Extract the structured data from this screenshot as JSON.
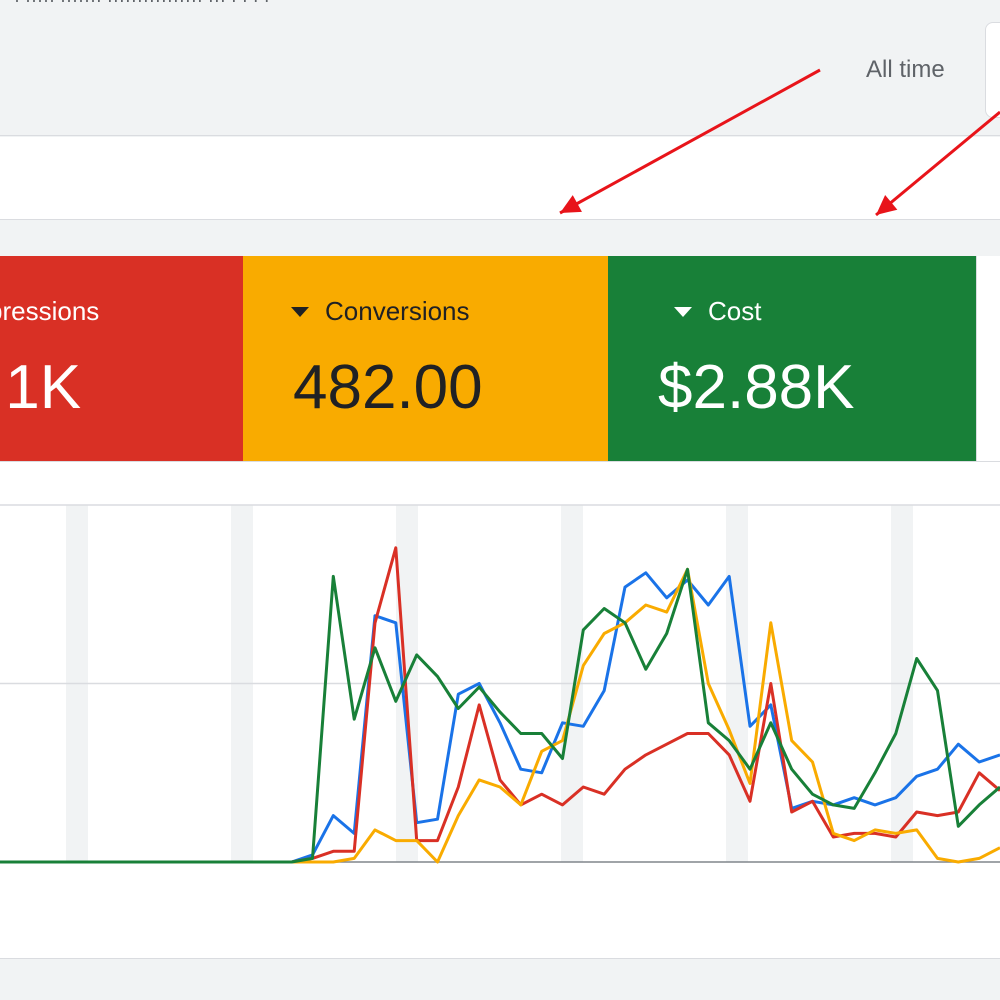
{
  "header": {
    "cut_text": "· ·····  ······· ················ ··· · · · ·",
    "date_range_label": "All time"
  },
  "scorecards": [
    {
      "id": "impressions",
      "label": "pressions",
      "value": ".1K",
      "color": "#d93025"
    },
    {
      "id": "conversions",
      "label": "Conversions",
      "value": "482.00",
      "color": "#f9ab00"
    },
    {
      "id": "cost",
      "label": "Cost",
      "value": "$2.88K",
      "color": "#188038"
    }
  ],
  "chart_data": {
    "type": "line",
    "x": [
      0,
      1,
      2,
      3,
      4,
      5,
      6,
      7,
      8,
      9,
      10,
      11,
      12,
      13,
      14,
      15,
      16,
      17,
      18,
      19,
      20,
      21,
      22,
      23,
      24,
      25,
      26,
      27,
      28,
      29,
      30,
      31,
      32,
      33,
      34,
      35,
      36,
      37,
      38,
      39,
      40,
      41,
      42,
      43,
      44,
      45,
      46,
      47,
      48
    ],
    "xlim": [
      0,
      48
    ],
    "ylim": [
      0,
      100
    ],
    "grid": true,
    "series": [
      {
        "color": "#1a73e8",
        "values": [
          0,
          0,
          0,
          0,
          0,
          0,
          0,
          0,
          0,
          0,
          0,
          0,
          0,
          0,
          0,
          2,
          13,
          8,
          69,
          67,
          11,
          12,
          47,
          50,
          39,
          26,
          25,
          39,
          38,
          48,
          77,
          81,
          74,
          79,
          72,
          80,
          38,
          44,
          15,
          17,
          16,
          18,
          16,
          18,
          24,
          26,
          33,
          28,
          30
        ]
      },
      {
        "color": "#d93025",
        "values": [
          0,
          0,
          0,
          0,
          0,
          0,
          0,
          0,
          0,
          0,
          0,
          0,
          0,
          0,
          0,
          1,
          3,
          3,
          67,
          88,
          6,
          6,
          21,
          44,
          23,
          16,
          19,
          16,
          21,
          19,
          26,
          30,
          33,
          36,
          36,
          30,
          17,
          50,
          14,
          17,
          7,
          8,
          8,
          7,
          14,
          13,
          14,
          25,
          20
        ]
      },
      {
        "color": "#f9ab00",
        "values": [
          0,
          0,
          0,
          0,
          0,
          0,
          0,
          0,
          0,
          0,
          0,
          0,
          0,
          0,
          0,
          0,
          0,
          1,
          9,
          6,
          6,
          0,
          13,
          23,
          21,
          16,
          31,
          34,
          55,
          64,
          67,
          72,
          70,
          82,
          50,
          37,
          22,
          67,
          34,
          28,
          8,
          6,
          9,
          8,
          9,
          1,
          0,
          1,
          4
        ]
      },
      {
        "color": "#188038",
        "values": [
          0,
          0,
          0,
          0,
          0,
          0,
          0,
          0,
          0,
          0,
          0,
          0,
          0,
          0,
          0,
          1,
          80,
          40,
          60,
          45,
          58,
          52,
          43,
          49,
          42,
          36,
          36,
          29,
          65,
          71,
          67,
          54,
          64,
          82,
          39,
          34,
          26,
          39,
          26,
          19,
          16,
          15,
          25,
          36,
          57,
          48,
          10,
          16,
          21
        ]
      }
    ]
  }
}
